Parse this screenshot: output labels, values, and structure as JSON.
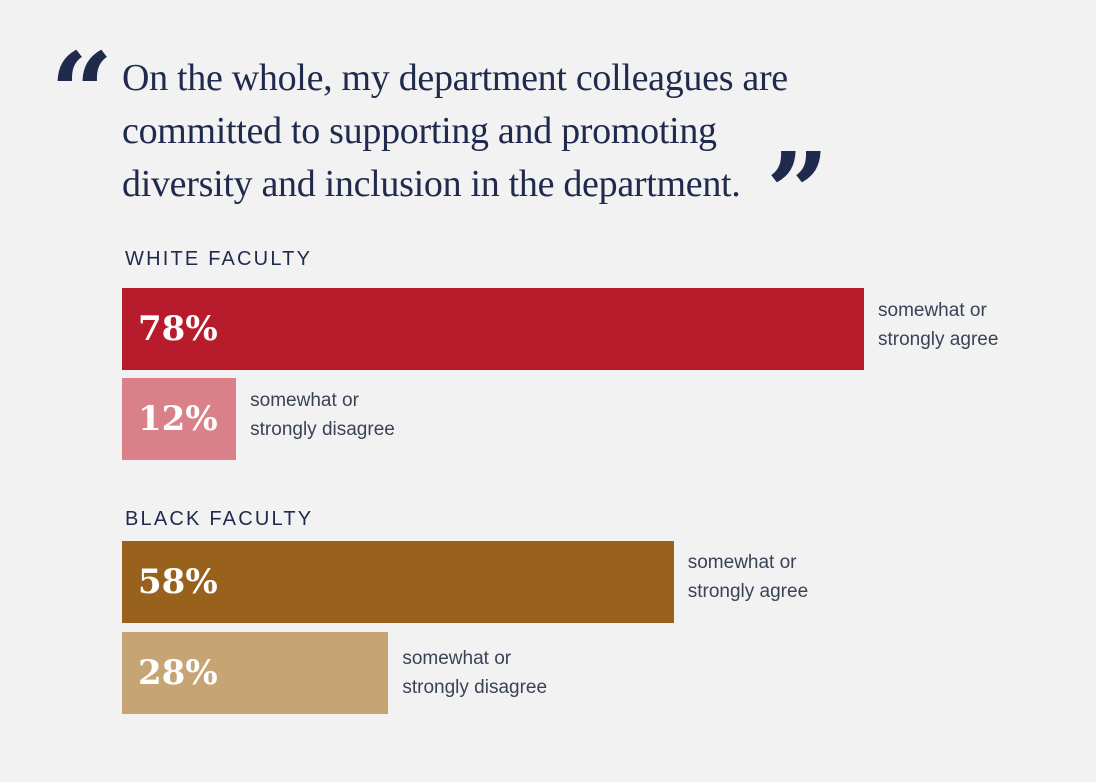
{
  "quote": {
    "text": "On the whole, my department colleagues are committed to supporting and promoting diversity and inclusion in the department.",
    "open_mark": "“",
    "close_mark": "”"
  },
  "colors": {
    "white_agree": "#b81c2c",
    "white_disagree": "#d98088",
    "black_agree": "#98621c",
    "black_disagree": "#c6a474",
    "text": "#1f2a4d"
  },
  "chart_data": {
    "type": "bar",
    "orientation": "horizontal",
    "title": "On the whole, my department colleagues are committed to supporting and promoting diversity and inclusion in the department.",
    "xlim": [
      0,
      100
    ],
    "groups": [
      {
        "name": "WHITE FACULTY",
        "bars": [
          {
            "value": 78,
            "value_label": "78%",
            "caption_line1": "somewhat or",
            "caption_line2": "strongly agree",
            "color": "#b81c2c"
          },
          {
            "value": 12,
            "value_label": "12%",
            "caption_line1": "somewhat or",
            "caption_line2": "strongly disagree",
            "color": "#d98088"
          }
        ]
      },
      {
        "name": "BLACK FACULTY",
        "bars": [
          {
            "value": 58,
            "value_label": "58%",
            "caption_line1": "somewhat or",
            "caption_line2": "strongly agree",
            "color": "#98621c"
          },
          {
            "value": 28,
            "value_label": "28%",
            "caption_line1": "somewhat or",
            "caption_line2": "strongly disagree",
            "color": "#c6a474"
          }
        ]
      }
    ]
  }
}
